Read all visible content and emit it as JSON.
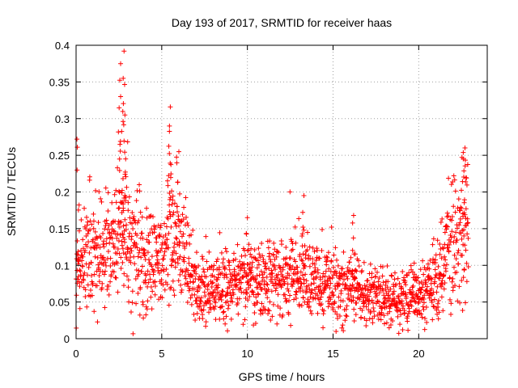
{
  "chart_data": {
    "type": "scatter",
    "title": "Day 193 of 2017, SRMTID for receiver haas",
    "xlabel": "GPS time / hours",
    "ylabel": "SRMTID / TECUs",
    "xlim": [
      0,
      24
    ],
    "ylim": [
      0,
      0.4
    ],
    "x_ticks": [
      "0",
      "5",
      "10",
      "15",
      "20"
    ],
    "y_ticks": [
      "0",
      "0.05",
      "0.1",
      "0.15",
      "0.2",
      "0.25",
      "0.3",
      "0.35",
      "0.4"
    ],
    "grid": true,
    "marker": "+",
    "color": "#ff0000",
    "sampling_interval_hours": 0.0125,
    "series": [
      {
        "name": "SRMTID",
        "x_start": 0,
        "x_end": 22.9,
        "trend_points": [
          [
            0.0,
            0.095
          ],
          [
            1.0,
            0.115
          ],
          [
            2.0,
            0.12
          ],
          [
            2.5,
            0.15
          ],
          [
            3.0,
            0.13
          ],
          [
            4.0,
            0.11
          ],
          [
            5.0,
            0.1
          ],
          [
            5.5,
            0.14
          ],
          [
            6.2,
            0.12
          ],
          [
            7.0,
            0.07
          ],
          [
            9.0,
            0.075
          ],
          [
            11.0,
            0.08
          ],
          [
            13.0,
            0.085
          ],
          [
            15.0,
            0.075
          ],
          [
            17.0,
            0.06
          ],
          [
            19.0,
            0.055
          ],
          [
            20.0,
            0.06
          ],
          [
            21.0,
            0.08
          ],
          [
            22.0,
            0.13
          ],
          [
            22.9,
            0.15
          ]
        ],
        "peaks": [
          {
            "x": 0.05,
            "y": 0.272
          },
          {
            "x": 2.6,
            "y": 0.375
          },
          {
            "x": 2.8,
            "y": 0.392
          },
          {
            "x": 2.75,
            "y": 0.355
          },
          {
            "x": 2.6,
            "y": 0.33
          },
          {
            "x": 2.85,
            "y": 0.305
          },
          {
            "x": 5.5,
            "y": 0.316
          },
          {
            "x": 5.45,
            "y": 0.29
          },
          {
            "x": 6.0,
            "y": 0.255
          },
          {
            "x": 13.3,
            "y": 0.195
          },
          {
            "x": 10.0,
            "y": 0.165
          },
          {
            "x": 16.2,
            "y": 0.168
          },
          {
            "x": 22.7,
            "y": 0.26
          },
          {
            "x": 22.6,
            "y": 0.245
          }
        ]
      }
    ]
  }
}
